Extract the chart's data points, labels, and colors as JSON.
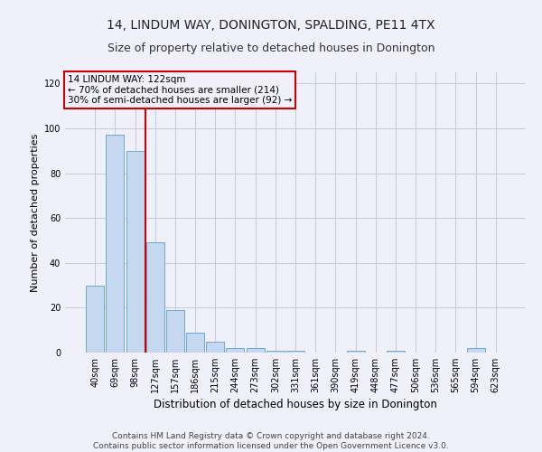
{
  "title": "14, LINDUM WAY, DONINGTON, SPALDING, PE11 4TX",
  "subtitle": "Size of property relative to detached houses in Donington",
  "xlabel": "Distribution of detached houses by size in Donington",
  "ylabel": "Number of detached properties",
  "categories": [
    "40sqm",
    "69sqm",
    "98sqm",
    "127sqm",
    "157sqm",
    "186sqm",
    "215sqm",
    "244sqm",
    "273sqm",
    "302sqm",
    "331sqm",
    "361sqm",
    "390sqm",
    "419sqm",
    "448sqm",
    "477sqm",
    "506sqm",
    "536sqm",
    "565sqm",
    "594sqm",
    "623sqm"
  ],
  "values": [
    30,
    97,
    90,
    49,
    19,
    9,
    5,
    2,
    2,
    1,
    1,
    0,
    0,
    1,
    0,
    1,
    0,
    0,
    0,
    2,
    0
  ],
  "bar_color": "#c5d8f0",
  "bar_edge_color": "#6aaad4",
  "ylim": [
    0,
    125
  ],
  "yticks": [
    0,
    20,
    40,
    60,
    80,
    100,
    120
  ],
  "vline_x": 2.5,
  "vline_color": "#cc0000",
  "annotation_line1": "14 LINDUM WAY: 122sqm",
  "annotation_line2": "← 70% of detached houses are smaller (214)",
  "annotation_line3": "30% of semi-detached houses are larger (92) →",
  "annotation_box_color": "#cc0000",
  "footer_line1": "Contains HM Land Registry data © Crown copyright and database right 2024.",
  "footer_line2": "Contains public sector information licensed under the Open Government Licence v3.0.",
  "title_fontsize": 10,
  "subtitle_fontsize": 9,
  "xlabel_fontsize": 8.5,
  "ylabel_fontsize": 8,
  "tick_fontsize": 7,
  "annotation_fontsize": 7.5,
  "footer_fontsize": 6.5,
  "background_color": "#f0f0fa",
  "grid_color": "#c8c8dc"
}
